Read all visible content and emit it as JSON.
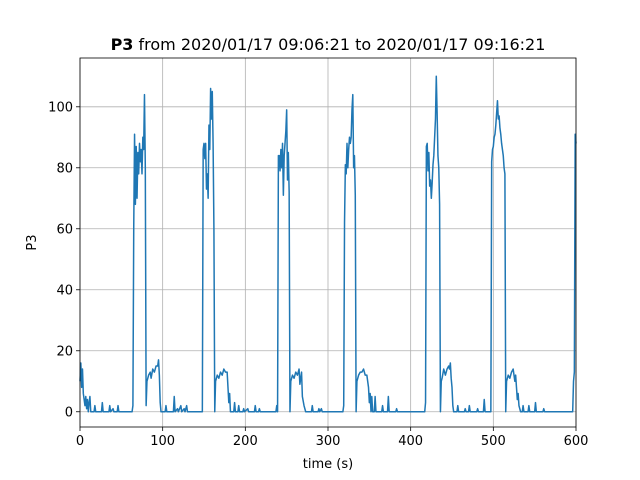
{
  "chart_data": {
    "type": "line",
    "title": {
      "bold": "P3",
      "rest": " from 2020/01/17 09:06:21 to 2020/01/17 09:16:21"
    },
    "xlabel": "time (s)",
    "ylabel": "P3",
    "xlim": [
      0,
      600
    ],
    "ylim": [
      -5,
      116
    ],
    "x_ticks": [
      0,
      100,
      200,
      300,
      400,
      500,
      600
    ],
    "y_ticks": [
      0,
      20,
      40,
      60,
      80,
      100
    ],
    "grid": true,
    "line_color": "#1f77b4",
    "series": [
      {
        "points": [
          [
            0,
            10
          ],
          [
            1,
            16
          ],
          [
            2,
            8
          ],
          [
            3,
            14
          ],
          [
            4,
            6
          ],
          [
            5,
            4
          ],
          [
            6,
            2
          ],
          [
            7,
            5
          ],
          [
            8,
            1
          ],
          [
            9,
            4
          ],
          [
            10,
            0
          ],
          [
            11,
            3
          ],
          [
            12,
            5
          ],
          [
            13,
            0
          ],
          [
            14,
            0
          ],
          [
            17,
            0
          ],
          [
            18,
            2
          ],
          [
            19,
            0
          ],
          [
            26,
            0
          ],
          [
            27,
            3
          ],
          [
            28,
            0
          ],
          [
            35,
            0
          ],
          [
            36,
            2
          ],
          [
            37,
            0
          ],
          [
            40,
            1
          ],
          [
            41,
            0
          ],
          [
            45,
            0
          ],
          [
            46,
            2
          ],
          [
            47,
            0
          ],
          [
            55,
            0
          ],
          [
            63,
            0
          ],
          [
            64,
            2
          ],
          [
            65,
            60
          ],
          [
            66,
            91
          ],
          [
            67,
            68
          ],
          [
            68,
            87
          ],
          [
            69,
            70
          ],
          [
            70,
            85
          ],
          [
            71,
            78
          ],
          [
            72,
            88
          ],
          [
            73,
            82
          ],
          [
            74,
            86
          ],
          [
            75,
            78
          ],
          [
            76,
            90
          ],
          [
            77,
            86
          ],
          [
            78,
            104
          ],
          [
            79,
            80
          ],
          [
            80,
            2
          ],
          [
            81,
            10
          ],
          [
            83,
            12
          ],
          [
            85,
            13
          ],
          [
            86,
            11
          ],
          [
            88,
            14
          ],
          [
            90,
            13
          ],
          [
            92,
            15
          ],
          [
            94,
            15
          ],
          [
            95,
            17
          ],
          [
            96,
            12
          ],
          [
            97,
            3
          ],
          [
            98,
            0
          ],
          [
            103,
            0
          ],
          [
            104,
            2
          ],
          [
            105,
            0
          ],
          [
            113,
            0
          ],
          [
            114,
            5
          ],
          [
            115,
            0
          ],
          [
            118,
            1
          ],
          [
            119,
            0
          ],
          [
            122,
            2
          ],
          [
            123,
            0
          ],
          [
            126,
            1
          ],
          [
            127,
            0
          ],
          [
            129,
            2
          ],
          [
            130,
            0
          ],
          [
            133,
            0
          ],
          [
            148,
            0
          ],
          [
            149,
            86
          ],
          [
            150,
            88
          ],
          [
            151,
            83
          ],
          [
            152,
            88
          ],
          [
            153,
            73
          ],
          [
            154,
            78
          ],
          [
            155,
            70
          ],
          [
            156,
            94
          ],
          [
            157,
            86
          ],
          [
            158,
            106
          ],
          [
            159,
            96
          ],
          [
            160,
            105
          ],
          [
            161,
            88
          ],
          [
            162,
            60
          ],
          [
            163,
            0
          ],
          [
            164,
            10
          ],
          [
            166,
            12
          ],
          [
            168,
            11
          ],
          [
            170,
            13
          ],
          [
            172,
            12
          ],
          [
            174,
            14
          ],
          [
            176,
            13
          ],
          [
            178,
            13
          ],
          [
            180,
            3
          ],
          [
            181,
            6
          ],
          [
            182,
            0
          ],
          [
            186,
            0
          ],
          [
            187,
            3
          ],
          [
            188,
            0
          ],
          [
            191,
            0
          ],
          [
            192,
            2
          ],
          [
            193,
            0
          ],
          [
            197,
            0
          ],
          [
            198,
            1
          ],
          [
            199,
            0
          ],
          [
            203,
            1
          ],
          [
            204,
            0
          ],
          [
            211,
            0
          ],
          [
            212,
            2
          ],
          [
            213,
            0
          ],
          [
            216,
            0
          ],
          [
            217,
            1
          ],
          [
            218,
            0
          ],
          [
            228,
            0
          ],
          [
            237,
            0
          ],
          [
            238,
            2
          ],
          [
            239,
            0
          ],
          [
            240,
            84
          ],
          [
            241,
            84
          ],
          [
            242,
            79
          ],
          [
            243,
            86
          ],
          [
            244,
            80
          ],
          [
            245,
            88
          ],
          [
            246,
            71
          ],
          [
            247,
            84
          ],
          [
            248,
            88
          ],
          [
            249,
            92
          ],
          [
            250,
            99
          ],
          [
            251,
            76
          ],
          [
            252,
            85
          ],
          [
            253,
            72
          ],
          [
            254,
            0
          ],
          [
            255,
            10
          ],
          [
            257,
            12
          ],
          [
            259,
            11
          ],
          [
            261,
            13
          ],
          [
            263,
            12
          ],
          [
            265,
            14
          ],
          [
            266,
            9
          ],
          [
            268,
            13
          ],
          [
            269,
            5
          ],
          [
            271,
            2
          ],
          [
            273,
            0
          ],
          [
            280,
            0
          ],
          [
            281,
            2
          ],
          [
            282,
            0
          ],
          [
            288,
            0
          ],
          [
            289,
            1
          ],
          [
            290,
            0
          ],
          [
            292,
            1
          ],
          [
            293,
            0
          ],
          [
            298,
            0
          ],
          [
            318,
            0
          ],
          [
            319,
            2
          ],
          [
            320,
            62
          ],
          [
            321,
            81
          ],
          [
            322,
            78
          ],
          [
            323,
            88
          ],
          [
            324,
            80
          ],
          [
            325,
            86
          ],
          [
            326,
            90
          ],
          [
            327,
            88
          ],
          [
            328,
            90
          ],
          [
            329,
            99
          ],
          [
            330,
            104
          ],
          [
            331,
            80
          ],
          [
            332,
            84
          ],
          [
            333,
            71
          ],
          [
            334,
            0
          ],
          [
            335,
            10
          ],
          [
            337,
            12
          ],
          [
            339,
            13
          ],
          [
            341,
            13
          ],
          [
            343,
            14
          ],
          [
            345,
            12
          ],
          [
            347,
            12
          ],
          [
            349,
            8
          ],
          [
            350,
            3
          ],
          [
            351,
            6
          ],
          [
            352,
            0
          ],
          [
            353,
            5
          ],
          [
            354,
            0
          ],
          [
            356,
            0
          ],
          [
            357,
            5
          ],
          [
            358,
            0
          ],
          [
            365,
            0
          ],
          [
            366,
            2
          ],
          [
            367,
            0
          ],
          [
            372,
            0
          ],
          [
            373,
            5
          ],
          [
            374,
            0
          ],
          [
            382,
            0
          ],
          [
            383,
            1
          ],
          [
            384,
            0
          ],
          [
            390,
            0
          ],
          [
            417,
            0
          ],
          [
            418,
            3
          ],
          [
            419,
            87
          ],
          [
            420,
            88
          ],
          [
            421,
            79
          ],
          [
            422,
            85
          ],
          [
            423,
            74
          ],
          [
            424,
            76
          ],
          [
            425,
            70
          ],
          [
            426,
            75
          ],
          [
            427,
            81
          ],
          [
            428,
            84
          ],
          [
            429,
            90
          ],
          [
            430,
            96
          ],
          [
            431,
            110
          ],
          [
            432,
            98
          ],
          [
            433,
            84
          ],
          [
            434,
            80
          ],
          [
            435,
            68
          ],
          [
            436,
            0
          ],
          [
            437,
            10
          ],
          [
            438,
            11
          ],
          [
            440,
            14
          ],
          [
            442,
            12
          ],
          [
            444,
            14
          ],
          [
            446,
            15
          ],
          [
            447,
            14
          ],
          [
            448,
            16
          ],
          [
            449,
            11
          ],
          [
            450,
            8
          ],
          [
            451,
            2
          ],
          [
            452,
            0
          ],
          [
            456,
            0
          ],
          [
            457,
            2
          ],
          [
            458,
            0
          ],
          [
            465,
            0
          ],
          [
            466,
            1
          ],
          [
            467,
            0
          ],
          [
            470,
            0
          ],
          [
            471,
            2
          ],
          [
            472,
            0
          ],
          [
            480,
            0
          ],
          [
            481,
            1
          ],
          [
            482,
            0
          ],
          [
            488,
            0
          ],
          [
            489,
            4
          ],
          [
            490,
            0
          ],
          [
            494,
            0
          ],
          [
            497,
            0
          ],
          [
            498,
            82
          ],
          [
            499,
            86
          ],
          [
            500,
            87
          ],
          [
            501,
            90
          ],
          [
            502,
            91
          ],
          [
            503,
            94
          ],
          [
            504,
            98
          ],
          [
            505,
            102
          ],
          [
            506,
            96
          ],
          [
            507,
            97
          ],
          [
            508,
            93
          ],
          [
            509,
            91
          ],
          [
            510,
            88
          ],
          [
            511,
            86
          ],
          [
            512,
            84
          ],
          [
            513,
            80
          ],
          [
            514,
            78
          ],
          [
            515,
            0
          ],
          [
            516,
            10
          ],
          [
            518,
            12
          ],
          [
            520,
            11
          ],
          [
            522,
            13
          ],
          [
            524,
            14
          ],
          [
            526,
            10
          ],
          [
            527,
            12
          ],
          [
            528,
            8
          ],
          [
            529,
            4
          ],
          [
            530,
            6
          ],
          [
            531,
            2
          ],
          [
            533,
            0
          ],
          [
            535,
            0
          ],
          [
            536,
            2
          ],
          [
            537,
            0
          ],
          [
            542,
            0
          ],
          [
            543,
            2
          ],
          [
            544,
            0
          ],
          [
            550,
            0
          ],
          [
            551,
            3
          ],
          [
            552,
            0
          ],
          [
            560,
            0
          ],
          [
            561,
            1
          ],
          [
            562,
            0
          ],
          [
            570,
            0
          ],
          [
            590,
            0
          ],
          [
            596,
            0
          ],
          [
            597,
            10
          ],
          [
            598,
            13
          ],
          [
            599,
            91
          ],
          [
            600,
            88
          ]
        ]
      }
    ]
  }
}
